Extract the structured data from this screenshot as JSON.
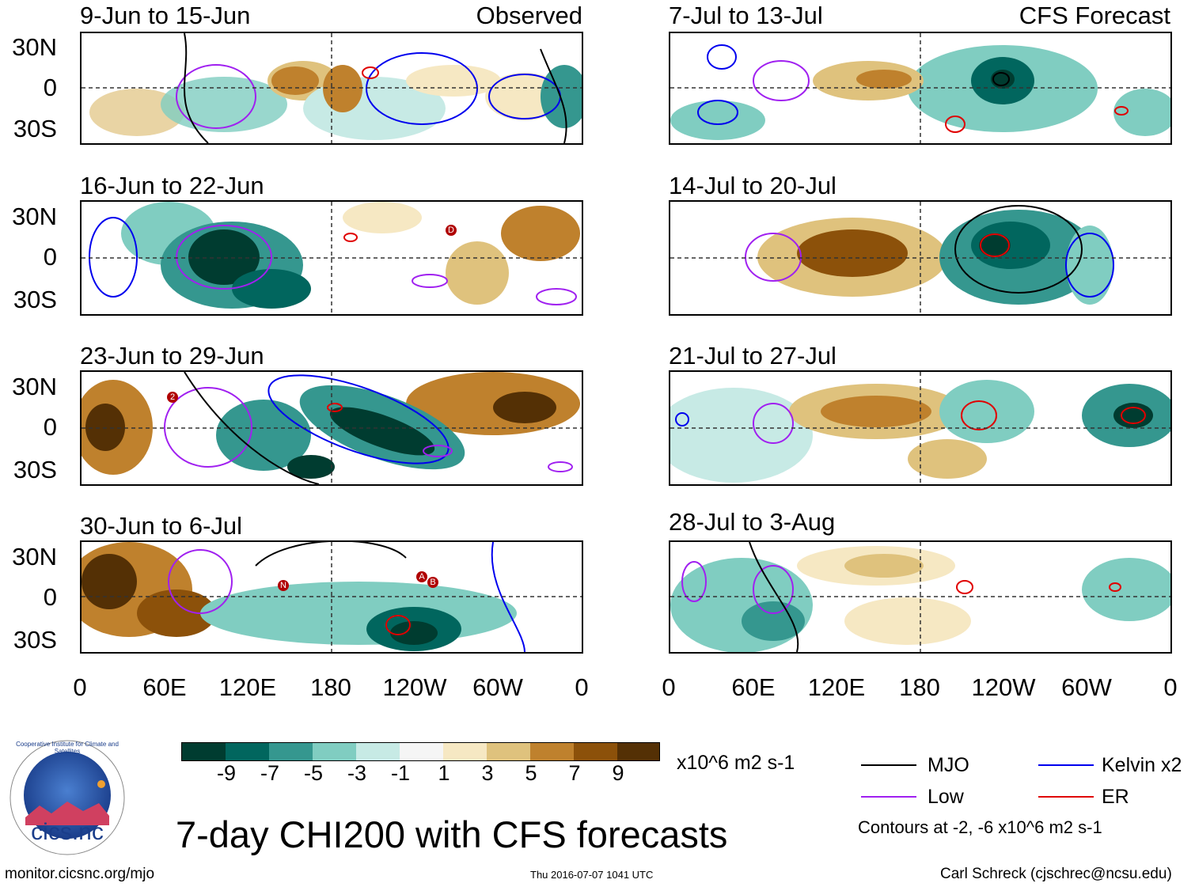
{
  "panels": [
    {
      "title": "9-Jun to 15-Jun",
      "label": "Observed"
    },
    {
      "title": "16-Jun to 22-Jun",
      "label": ""
    },
    {
      "title": "23-Jun to 29-Jun",
      "label": ""
    },
    {
      "title": "30-Jun to 6-Jul",
      "label": ""
    },
    {
      "title": "7-Jul to 13-Jul",
      "label": "CFS Forecast"
    },
    {
      "title": "14-Jul to 20-Jul",
      "label": ""
    },
    {
      "title": "21-Jul to 27-Jul",
      "label": ""
    },
    {
      "title": "28-Jul to 3-Aug",
      "label": ""
    }
  ],
  "axes": {
    "y_ticks": [
      "30N",
      "0",
      "30S"
    ],
    "x_ticks": [
      "0",
      "60E",
      "120E",
      "180",
      "120W",
      "60W",
      "0"
    ]
  },
  "colorbar": {
    "labels": [
      "-9",
      "-7",
      "-5",
      "-3",
      "-1",
      "1",
      "3",
      "5",
      "7",
      "9"
    ],
    "units": "x10^6 m2 s-1",
    "colors": [
      "#003c30",
      "#01665e",
      "#35978f",
      "#80cdc1",
      "#c7eae5",
      "#f5f5f5",
      "#f6e8c3",
      "#dfc27d",
      "#bf812d",
      "#8c510a",
      "#543005"
    ]
  },
  "legend": {
    "mjo": "MJO",
    "low": "Low",
    "kelvin": "Kelvin x2",
    "er": "ER",
    "mjo_color": "#000000",
    "low_color": "#a020f0",
    "kelvin_color": "#0000ee",
    "er_color": "#e00000",
    "contours_note": "Contours at -2, -6 x10^6 m2 s-1"
  },
  "logo": {
    "text": "cics.nc",
    "ring_text": "Cooperative Institute for Climate and Satellites"
  },
  "main_title": "7-day CHI200 with CFS forecasts",
  "footer": {
    "url": "monitor.cicsnc.org/mjo",
    "timestamp": "Thu 2016-07-07 1041 UTC",
    "author": "Carl Schreck (cjschrec@ncsu.edu)"
  },
  "storm_markers": [
    "2",
    "D",
    "N",
    "A",
    "B"
  ]
}
